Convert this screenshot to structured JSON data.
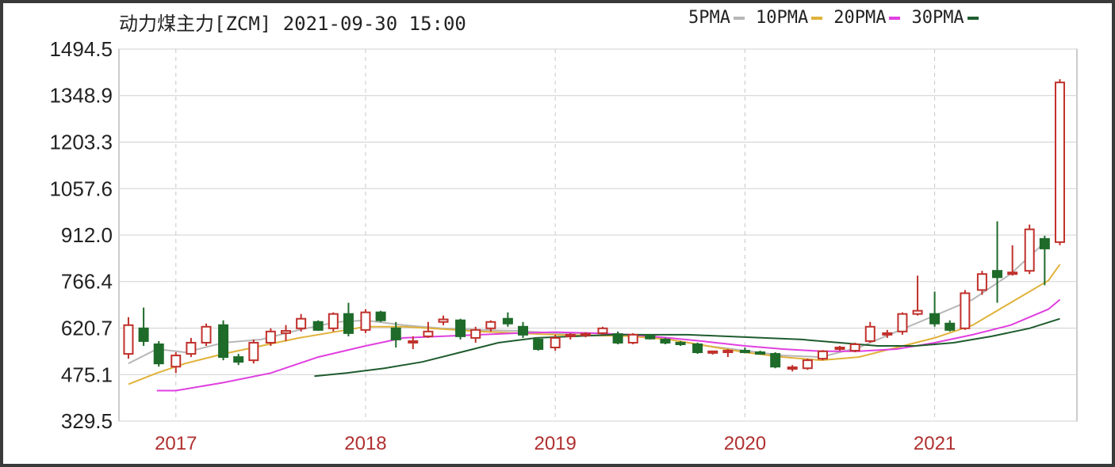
{
  "header": {
    "title": "动力煤主力[ZCM] 2021-09-30 15:00"
  },
  "legend": [
    {
      "label": "5PMA",
      "color": "#b7b7b7"
    },
    {
      "label": "10PMA",
      "color": "#e0b23a"
    },
    {
      "label": "20PMA",
      "color": "#e040e0"
    },
    {
      "label": "30PMA",
      "color": "#1f5c2e"
    }
  ],
  "chart_data": {
    "type": "candlestick",
    "title": "动力煤主力[ZCM] 2021-09-30 15:00",
    "ylim": [
      329.5,
      1494.5
    ],
    "yticks": [
      "1494.5",
      "1348.9",
      "1203.3",
      "1057.6",
      "912.0",
      "766.4",
      "620.7",
      "475.1",
      "329.5"
    ],
    "yticks_values": [
      1494.5,
      1348.9,
      1203.3,
      1057.6,
      912.0,
      766.4,
      620.7,
      475.1,
      329.5
    ],
    "xticks": [
      "2017",
      "2018",
      "2019",
      "2020",
      "2021"
    ],
    "xticks_values": [
      2017.0,
      2018.0,
      2019.0,
      2020.0,
      2021.0
    ],
    "xlim": [
      2016.7,
      2021.75
    ],
    "grid": true,
    "legend_position": "top-right",
    "candles": [
      {
        "x": 2016.75,
        "o": 540,
        "c": 630,
        "h": 655,
        "l": 525,
        "up": true
      },
      {
        "x": 2016.83,
        "o": 620,
        "c": 580,
        "h": 685,
        "l": 565,
        "up": false
      },
      {
        "x": 2016.91,
        "o": 570,
        "c": 510,
        "h": 580,
        "l": 500,
        "up": false
      },
      {
        "x": 2017.0,
        "o": 500,
        "c": 535,
        "h": 545,
        "l": 480,
        "up": true
      },
      {
        "x": 2017.08,
        "o": 540,
        "c": 575,
        "h": 590,
        "l": 530,
        "up": true
      },
      {
        "x": 2017.16,
        "o": 575,
        "c": 625,
        "h": 635,
        "l": 565,
        "up": true
      },
      {
        "x": 2017.25,
        "o": 630,
        "c": 530,
        "h": 645,
        "l": 520,
        "up": false
      },
      {
        "x": 2017.33,
        "o": 530,
        "c": 515,
        "h": 540,
        "l": 505,
        "up": false
      },
      {
        "x": 2017.41,
        "o": 520,
        "c": 575,
        "h": 585,
        "l": 510,
        "up": true
      },
      {
        "x": 2017.5,
        "o": 575,
        "c": 610,
        "h": 620,
        "l": 565,
        "up": true
      },
      {
        "x": 2017.58,
        "o": 605,
        "c": 612,
        "h": 630,
        "l": 580,
        "up": true
      },
      {
        "x": 2017.66,
        "o": 620,
        "c": 650,
        "h": 665,
        "l": 610,
        "up": true
      },
      {
        "x": 2017.75,
        "o": 640,
        "c": 615,
        "h": 645,
        "l": 612,
        "up": false
      },
      {
        "x": 2017.83,
        "o": 620,
        "c": 665,
        "h": 670,
        "l": 610,
        "up": true
      },
      {
        "x": 2017.91,
        "o": 665,
        "c": 605,
        "h": 700,
        "l": 595,
        "up": false
      },
      {
        "x": 2018.0,
        "o": 615,
        "c": 670,
        "h": 680,
        "l": 605,
        "up": true
      },
      {
        "x": 2018.08,
        "o": 670,
        "c": 645,
        "h": 675,
        "l": 640,
        "up": false
      },
      {
        "x": 2018.16,
        "o": 620,
        "c": 585,
        "h": 640,
        "l": 560,
        "up": false
      },
      {
        "x": 2018.25,
        "o": 575,
        "c": 580,
        "h": 595,
        "l": 555,
        "up": true
      },
      {
        "x": 2018.33,
        "o": 595,
        "c": 610,
        "h": 640,
        "l": 590,
        "up": true
      },
      {
        "x": 2018.41,
        "o": 640,
        "c": 648,
        "h": 660,
        "l": 630,
        "up": true
      },
      {
        "x": 2018.5,
        "o": 645,
        "c": 595,
        "h": 650,
        "l": 585,
        "up": false
      },
      {
        "x": 2018.58,
        "o": 590,
        "c": 615,
        "h": 625,
        "l": 575,
        "up": true
      },
      {
        "x": 2018.66,
        "o": 620,
        "c": 640,
        "h": 645,
        "l": 610,
        "up": true
      },
      {
        "x": 2018.75,
        "o": 650,
        "c": 635,
        "h": 670,
        "l": 625,
        "up": false
      },
      {
        "x": 2018.83,
        "o": 625,
        "c": 600,
        "h": 640,
        "l": 590,
        "up": false
      },
      {
        "x": 2018.91,
        "o": 585,
        "c": 555,
        "h": 590,
        "l": 550,
        "up": false
      },
      {
        "x": 2019.0,
        "o": 560,
        "c": 590,
        "h": 600,
        "l": 550,
        "up": true
      },
      {
        "x": 2019.08,
        "o": 595,
        "c": 600,
        "h": 605,
        "l": 585,
        "up": true
      },
      {
        "x": 2019.16,
        "o": 600,
        "c": 603,
        "h": 608,
        "l": 592,
        "up": true
      },
      {
        "x": 2019.25,
        "o": 605,
        "c": 620,
        "h": 625,
        "l": 600,
        "up": true
      },
      {
        "x": 2019.33,
        "o": 602,
        "c": 575,
        "h": 610,
        "l": 570,
        "up": false
      },
      {
        "x": 2019.41,
        "o": 575,
        "c": 600,
        "h": 605,
        "l": 570,
        "up": true
      },
      {
        "x": 2019.5,
        "o": 598,
        "c": 588,
        "h": 602,
        "l": 585,
        "up": false
      },
      {
        "x": 2019.58,
        "o": 585,
        "c": 575,
        "h": 590,
        "l": 570,
        "up": false
      },
      {
        "x": 2019.66,
        "o": 575,
        "c": 570,
        "h": 580,
        "l": 565,
        "up": false
      },
      {
        "x": 2019.75,
        "o": 570,
        "c": 545,
        "h": 575,
        "l": 540,
        "up": false
      },
      {
        "x": 2019.83,
        "o": 543,
        "c": 548,
        "h": 550,
        "l": 538,
        "up": true
      },
      {
        "x": 2019.91,
        "o": 545,
        "c": 550,
        "h": 555,
        "l": 530,
        "up": true
      },
      {
        "x": 2020.0,
        "o": 550,
        "c": 547,
        "h": 560,
        "l": 542,
        "up": false
      },
      {
        "x": 2020.08,
        "o": 545,
        "c": 545,
        "h": 550,
        "l": 540,
        "up": false
      },
      {
        "x": 2020.16,
        "o": 540,
        "c": 500,
        "h": 545,
        "l": 495,
        "up": false
      },
      {
        "x": 2020.25,
        "o": 495,
        "c": 498,
        "h": 505,
        "l": 485,
        "up": true
      },
      {
        "x": 2020.33,
        "o": 495,
        "c": 520,
        "h": 525,
        "l": 490,
        "up": true
      },
      {
        "x": 2020.41,
        "o": 525,
        "c": 548,
        "h": 552,
        "l": 520,
        "up": true
      },
      {
        "x": 2020.5,
        "o": 555,
        "c": 560,
        "h": 565,
        "l": 550,
        "up": true
      },
      {
        "x": 2020.58,
        "o": 550,
        "c": 570,
        "h": 575,
        "l": 545,
        "up": true
      },
      {
        "x": 2020.66,
        "o": 580,
        "c": 625,
        "h": 640,
        "l": 575,
        "up": true
      },
      {
        "x": 2020.75,
        "o": 600,
        "c": 605,
        "h": 615,
        "l": 590,
        "up": true
      },
      {
        "x": 2020.83,
        "o": 610,
        "c": 665,
        "h": 670,
        "l": 600,
        "up": true
      },
      {
        "x": 2020.91,
        "o": 665,
        "c": 675,
        "h": 785,
        "l": 660,
        "up": true
      },
      {
        "x": 2021.0,
        "o": 665,
        "c": 635,
        "h": 735,
        "l": 625,
        "up": false
      },
      {
        "x": 2021.08,
        "o": 635,
        "c": 615,
        "h": 645,
        "l": 610,
        "up": false
      },
      {
        "x": 2021.16,
        "o": 620,
        "c": 730,
        "h": 740,
        "l": 615,
        "up": true
      },
      {
        "x": 2021.25,
        "o": 740,
        "c": 790,
        "h": 800,
        "l": 725,
        "up": true
      },
      {
        "x": 2021.33,
        "o": 800,
        "c": 780,
        "h": 955,
        "l": 700,
        "up": false
      },
      {
        "x": 2021.41,
        "o": 790,
        "c": 795,
        "h": 880,
        "l": 785,
        "up": true
      },
      {
        "x": 2021.5,
        "o": 800,
        "c": 930,
        "h": 945,
        "l": 790,
        "up": true
      },
      {
        "x": 2021.58,
        "o": 900,
        "c": 870,
        "h": 910,
        "l": 755,
        "up": false
      },
      {
        "x": 2021.66,
        "o": 890,
        "c": 1390,
        "h": 1400,
        "l": 880,
        "up": true
      }
    ],
    "series": [
      {
        "name": "5PMA",
        "color": "#b7b7b7",
        "points": [
          [
            2016.75,
            510
          ],
          [
            2016.9,
            555
          ],
          [
            2017.05,
            545
          ],
          [
            2017.25,
            575
          ],
          [
            2017.45,
            585
          ],
          [
            2017.65,
            615
          ],
          [
            2017.85,
            640
          ],
          [
            2018.0,
            645
          ],
          [
            2018.2,
            630
          ],
          [
            2018.4,
            620
          ],
          [
            2018.6,
            615
          ],
          [
            2018.8,
            612
          ],
          [
            2019.0,
            605
          ],
          [
            2019.2,
            605
          ],
          [
            2019.4,
            600
          ],
          [
            2019.6,
            585
          ],
          [
            2019.8,
            565
          ],
          [
            2020.0,
            550
          ],
          [
            2020.2,
            535
          ],
          [
            2020.4,
            530
          ],
          [
            2020.6,
            560
          ],
          [
            2020.8,
            610
          ],
          [
            2021.0,
            660
          ],
          [
            2021.2,
            710
          ],
          [
            2021.4,
            790
          ],
          [
            2021.6,
            900
          ]
        ]
      },
      {
        "name": "10PMA",
        "color": "#e0b23a",
        "points": [
          [
            2016.75,
            445
          ],
          [
            2016.9,
            480
          ],
          [
            2017.05,
            510
          ],
          [
            2017.25,
            540
          ],
          [
            2017.45,
            565
          ],
          [
            2017.65,
            590
          ],
          [
            2017.85,
            610
          ],
          [
            2018.0,
            625
          ],
          [
            2018.2,
            625
          ],
          [
            2018.4,
            618
          ],
          [
            2018.6,
            610
          ],
          [
            2018.8,
            605
          ],
          [
            2019.0,
            600
          ],
          [
            2019.2,
            598
          ],
          [
            2019.4,
            595
          ],
          [
            2019.6,
            585
          ],
          [
            2019.8,
            565
          ],
          [
            2020.0,
            545
          ],
          [
            2020.2,
            530
          ],
          [
            2020.4,
            520
          ],
          [
            2020.6,
            530
          ],
          [
            2020.8,
            560
          ],
          [
            2021.0,
            590
          ],
          [
            2021.2,
            630
          ],
          [
            2021.4,
            700
          ],
          [
            2021.6,
            770
          ],
          [
            2021.66,
            820
          ]
        ]
      },
      {
        "name": "20PMA",
        "color": "#e040e0",
        "points": [
          [
            2016.9,
            425
          ],
          [
            2017.0,
            425
          ],
          [
            2017.25,
            450
          ],
          [
            2017.5,
            480
          ],
          [
            2017.75,
            530
          ],
          [
            2018.0,
            565
          ],
          [
            2018.2,
            590
          ],
          [
            2018.4,
            595
          ],
          [
            2018.6,
            600
          ],
          [
            2018.8,
            605
          ],
          [
            2019.0,
            608
          ],
          [
            2019.2,
            605
          ],
          [
            2019.4,
            600
          ],
          [
            2019.6,
            590
          ],
          [
            2019.8,
            578
          ],
          [
            2020.0,
            565
          ],
          [
            2020.2,
            555
          ],
          [
            2020.4,
            548
          ],
          [
            2020.6,
            548
          ],
          [
            2020.8,
            555
          ],
          [
            2021.0,
            575
          ],
          [
            2021.2,
            600
          ],
          [
            2021.4,
            630
          ],
          [
            2021.6,
            680
          ],
          [
            2021.66,
            710
          ]
        ]
      },
      {
        "name": "30PMA",
        "color": "#1f5c2e",
        "points": [
          [
            2017.73,
            470
          ],
          [
            2017.9,
            480
          ],
          [
            2018.1,
            495
          ],
          [
            2018.3,
            515
          ],
          [
            2018.5,
            545
          ],
          [
            2018.7,
            575
          ],
          [
            2018.9,
            590
          ],
          [
            2019.1,
            595
          ],
          [
            2019.3,
            600
          ],
          [
            2019.5,
            600
          ],
          [
            2019.7,
            600
          ],
          [
            2019.9,
            595
          ],
          [
            2020.1,
            590
          ],
          [
            2020.3,
            585
          ],
          [
            2020.5,
            575
          ],
          [
            2020.7,
            565
          ],
          [
            2020.9,
            565
          ],
          [
            2021.1,
            575
          ],
          [
            2021.3,
            595
          ],
          [
            2021.5,
            620
          ],
          [
            2021.66,
            650
          ]
        ]
      }
    ]
  }
}
